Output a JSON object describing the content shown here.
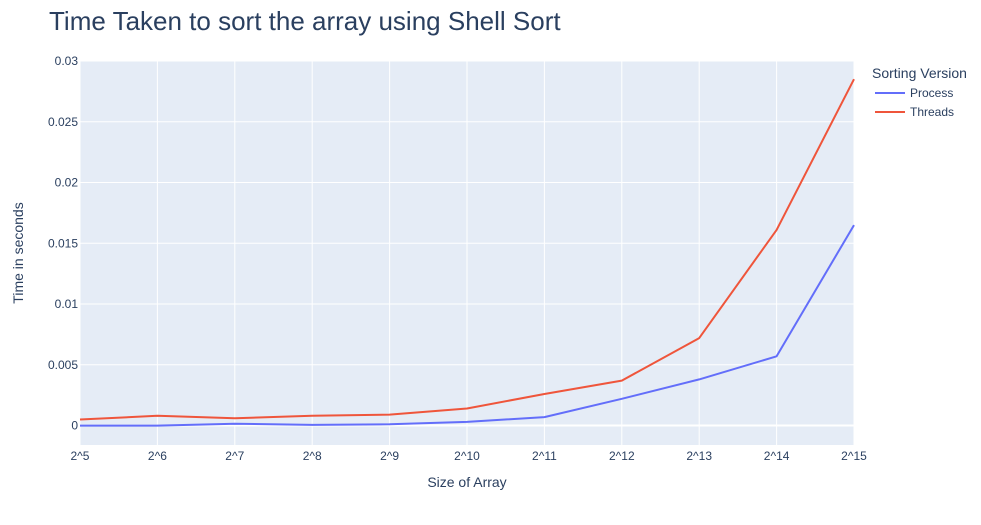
{
  "chart_data": {
    "type": "line",
    "title": "Time Taken to sort the array using Shell Sort",
    "xlabel": "Size of Array",
    "ylabel": "Time in seconds",
    "categories": [
      "2^5",
      "2^6",
      "2^7",
      "2^8",
      "2^9",
      "2^10",
      "2^11",
      "2^12",
      "2^13",
      "2^14",
      "2^15"
    ],
    "ylim": [
      -0.0016,
      0.03
    ],
    "yticks": [
      0,
      0.005,
      0.01,
      0.015,
      0.02,
      0.025,
      0.03
    ],
    "ytick_labels": [
      "0",
      "0.005",
      "0.01",
      "0.015",
      "0.02",
      "0.025",
      "0.03"
    ],
    "grid": true,
    "legend": {
      "title": "Sorting Version",
      "placement": "top-right"
    },
    "series": [
      {
        "name": "Process",
        "color": "#636efa",
        "values": [
          0.0,
          0.0,
          0.00015,
          5e-05,
          0.0001,
          0.0003,
          0.0007,
          0.0022,
          0.0038,
          0.0057,
          0.0165
        ]
      },
      {
        "name": "Threads",
        "color": "#ef553b",
        "values": [
          0.0005,
          0.0008,
          0.0006,
          0.0008,
          0.0009,
          0.0014,
          0.0026,
          0.0037,
          0.0072,
          0.0161,
          0.0285
        ]
      }
    ]
  }
}
